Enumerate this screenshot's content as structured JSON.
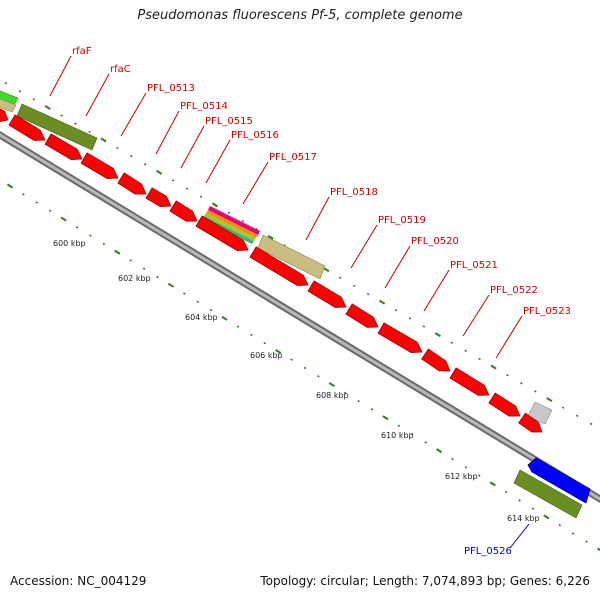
{
  "title": "Pseudomonas fluorescens Pf-5, complete genome",
  "footer": {
    "accession": "Accession: NC_004129",
    "summary": "Topology: circular; Length: 7,074,893 bp; Genes: 6,226"
  },
  "colors": {
    "forward_cds": "#ff0000",
    "reverse_cds": "#0000ff",
    "label_forward": "#cc0000",
    "label_reverse": "#0000cc",
    "backbone": "#8a8a8a",
    "tick": "#2e7d1e",
    "olive_feature": "#6b8e23",
    "tan_feature": "#c9bd7f",
    "gray_feature": "#c8c8c8"
  },
  "scale_labels": [
    "600 kbp",
    "602 kbp",
    "604 kbp",
    "606 kbp",
    "608 kbp",
    "610 kbp",
    "612 kbp",
    "614 kbp"
  ],
  "gene_labels": [
    {
      "id": "rfaF",
      "text": "rfaF",
      "strand": "forward"
    },
    {
      "id": "rfaC",
      "text": "rfaC",
      "strand": "forward"
    },
    {
      "id": "pfl0513",
      "text": "PFL_0513",
      "strand": "forward"
    },
    {
      "id": "pfl0514",
      "text": "PFL_0514",
      "strand": "forward"
    },
    {
      "id": "pfl0515",
      "text": "PFL_0515",
      "strand": "forward"
    },
    {
      "id": "pfl0516",
      "text": "PFL_0516",
      "strand": "forward"
    },
    {
      "id": "pfl0517",
      "text": "PFL_0517",
      "strand": "forward"
    },
    {
      "id": "pfl0518",
      "text": "PFL_0518",
      "strand": "forward"
    },
    {
      "id": "pfl0519",
      "text": "PFL_0519",
      "strand": "forward"
    },
    {
      "id": "pfl0520",
      "text": "PFL_0520",
      "strand": "forward"
    },
    {
      "id": "pfl0521",
      "text": "PFL_0521",
      "strand": "forward"
    },
    {
      "id": "pfl0522",
      "text": "PFL_0522",
      "strand": "forward"
    },
    {
      "id": "pfl0523",
      "text": "PFL_0523",
      "strand": "forward"
    },
    {
      "id": "pfl0526",
      "text": "PFL_0526",
      "strand": "reverse"
    }
  ]
}
